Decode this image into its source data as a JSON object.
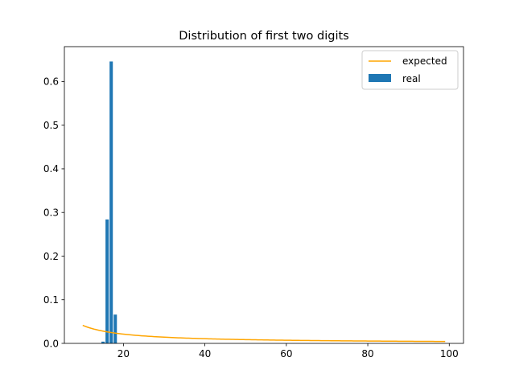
{
  "chart_data": {
    "type": "bar",
    "title": "Distribution of first two digits",
    "xlabel": "",
    "ylabel": "",
    "xlim": [
      5.5,
      103.5
    ],
    "ylim": [
      0.0,
      0.68
    ],
    "xticks": [
      20,
      40,
      60,
      80,
      100
    ],
    "xtick_labels": [
      "20",
      "40",
      "60",
      "80",
      "100"
    ],
    "yticks": [
      0.0,
      0.1,
      0.2,
      0.3,
      0.4,
      0.5,
      0.6
    ],
    "ytick_labels": [
      "0.0",
      "0.1",
      "0.2",
      "0.3",
      "0.4",
      "0.5",
      "0.6"
    ],
    "grid": false,
    "legend_position": "top-right",
    "series": [
      {
        "name": "expected",
        "type": "line",
        "color": "#ffa500",
        "x_start": 10,
        "x_end": 99
      },
      {
        "name": "real",
        "type": "bar",
        "color": "#1f77b4",
        "bar_width": 0.8,
        "x": [
          15,
          16,
          17,
          18
        ],
        "values": [
          0.004,
          0.284,
          0.646,
          0.066
        ]
      }
    ]
  }
}
